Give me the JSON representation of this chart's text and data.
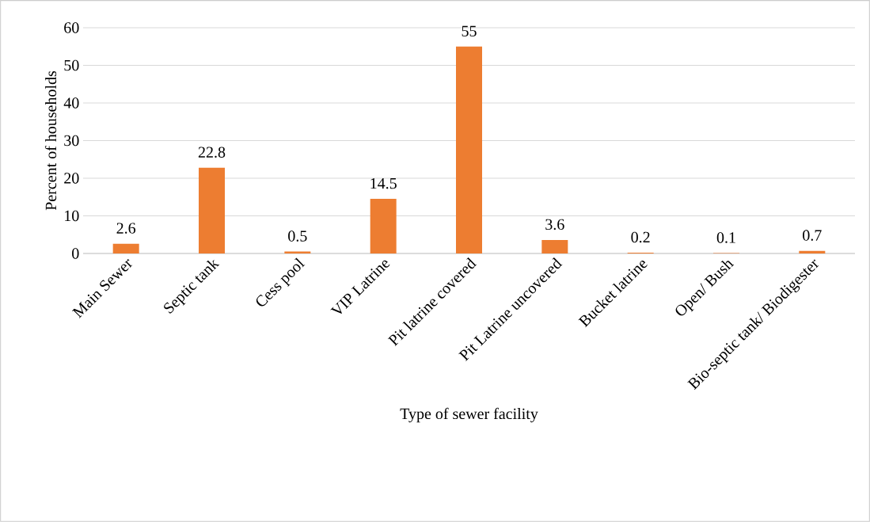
{
  "chart_data": {
    "type": "bar",
    "xlabel": "Type of sewer facility",
    "ylabel": "Percent of households",
    "categories": [
      "Main Sewer",
      "Septic tank",
      "Cess pool",
      "VIP Latrine",
      "Pit latrine covered",
      "Pit Latrine uncovered",
      "Bucket latrine",
      "Open/ Bush",
      "Bio-septic tank/ Biodigester"
    ],
    "values": [
      2.6,
      22.8,
      0.5,
      14.5,
      55,
      3.6,
      0.2,
      0.1,
      0.7
    ],
    "color": "#ed7d31",
    "ylim": [
      0,
      60
    ],
    "yticks": [
      0,
      10,
      20,
      30,
      40,
      50,
      60
    ],
    "grid": "y",
    "data_labels": true
  }
}
